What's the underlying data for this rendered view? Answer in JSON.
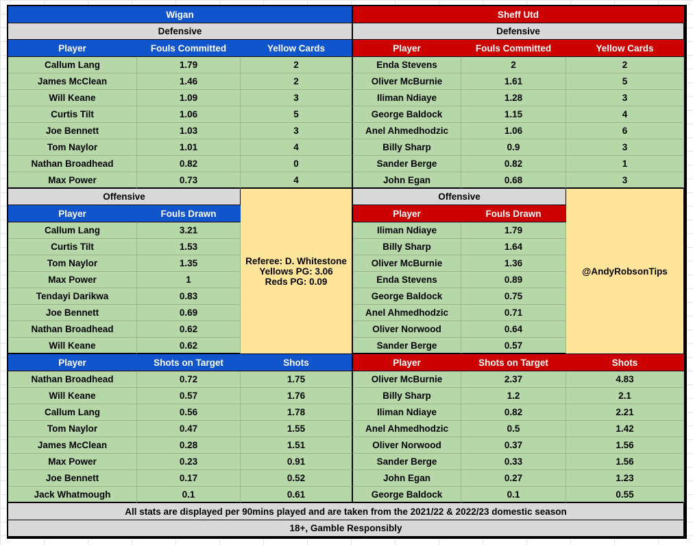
{
  "teams": {
    "home": "Wigan",
    "away": "Sheff Utd"
  },
  "labels": {
    "defensive": "Defensive",
    "offensive": "Offensive",
    "player": "Player",
    "fouls_committed": "Fouls Committed",
    "yellow_cards": "Yellow Cards",
    "fouls_drawn": "Fouls Drawn",
    "shots_on_target": "Shots on Target",
    "shots": "Shots"
  },
  "referee": {
    "name": "Referee: D. Whitestone",
    "yellows": "Yellows PG: 3.06",
    "reds": "Reds PG: 0.09"
  },
  "handle": "@AndyRobsonTips",
  "footer": {
    "note": "All stats are displayed per 90mins played and are taken from the 2021/22 & 2022/23 domestic season",
    "gamble": "18+, Gamble Responsibly"
  },
  "colors": {
    "home": "#1155cc",
    "away": "#cc0000",
    "rows": "#b6d7a8",
    "section": "#d9d9d9",
    "info": "#ffe599"
  },
  "home_defensive": [
    [
      "Callum Lang",
      "1.79",
      "2"
    ],
    [
      "James McClean",
      "1.46",
      "2"
    ],
    [
      "Will Keane",
      "1.09",
      "3"
    ],
    [
      "Curtis Tilt",
      "1.06",
      "5"
    ],
    [
      "Joe Bennett",
      "1.03",
      "3"
    ],
    [
      "Tom Naylor",
      "1.01",
      "4"
    ],
    [
      "Nathan Broadhead",
      "0.82",
      "0"
    ],
    [
      "Max Power",
      "0.73",
      "4"
    ]
  ],
  "away_defensive": [
    [
      "Enda Stevens",
      "2",
      "2"
    ],
    [
      "Oliver McBurnie",
      "1.61",
      "5"
    ],
    [
      "Iliman Ndiaye",
      "1.28",
      "3"
    ],
    [
      "George Baldock",
      "1.15",
      "4"
    ],
    [
      "Anel Ahmedhodzic",
      "1.06",
      "6"
    ],
    [
      "Billy Sharp",
      "0.9",
      "3"
    ],
    [
      "Sander Berge",
      "0.82",
      "1"
    ],
    [
      "John Egan",
      "0.68",
      "3"
    ]
  ],
  "home_offensive": [
    [
      "Callum Lang",
      "3.21"
    ],
    [
      "Curtis Tilt",
      "1.53"
    ],
    [
      "Tom Naylor",
      "1.35"
    ],
    [
      "Max Power",
      "1"
    ],
    [
      "Tendayi Darikwa",
      "0.83"
    ],
    [
      "Joe Bennett",
      "0.69"
    ],
    [
      "Nathan Broadhead",
      "0.62"
    ],
    [
      "Will Keane",
      "0.62"
    ]
  ],
  "away_offensive": [
    [
      "Iliman Ndiaye",
      "1.79"
    ],
    [
      "Billy Sharp",
      "1.64"
    ],
    [
      "Oliver McBurnie",
      "1.36"
    ],
    [
      "Enda Stevens",
      "0.89"
    ],
    [
      "George Baldock",
      "0.75"
    ],
    [
      "Anel Ahmedhodzic",
      "0.71"
    ],
    [
      "Oliver Norwood",
      "0.64"
    ],
    [
      "Sander Berge",
      "0.57"
    ]
  ],
  "home_shots": [
    [
      "Nathan Broadhead",
      "0.72",
      "1.75"
    ],
    [
      "Will Keane",
      "0.57",
      "1.76"
    ],
    [
      "Callum Lang",
      "0.56",
      "1.78"
    ],
    [
      "Tom Naylor",
      "0.47",
      "1.55"
    ],
    [
      "James McClean",
      "0.28",
      "1.51"
    ],
    [
      "Max Power",
      "0.23",
      "0.91"
    ],
    [
      "Joe Bennett",
      "0.17",
      "0.52"
    ],
    [
      "Jack Whatmough",
      "0.1",
      "0.61"
    ]
  ],
  "away_shots": [
    [
      "Oliver McBurnie",
      "2.37",
      "4.83"
    ],
    [
      "Billy Sharp",
      "1.2",
      "2.1"
    ],
    [
      "Iliman Ndiaye",
      "0.82",
      "2.21"
    ],
    [
      "Anel Ahmedhodzic",
      "0.5",
      "1.42"
    ],
    [
      "Oliver Norwood",
      "0.37",
      "1.56"
    ],
    [
      "Sander Berge",
      "0.33",
      "1.56"
    ],
    [
      "John Egan",
      "0.27",
      "1.23"
    ],
    [
      "George Baldock",
      "0.1",
      "0.55"
    ]
  ]
}
